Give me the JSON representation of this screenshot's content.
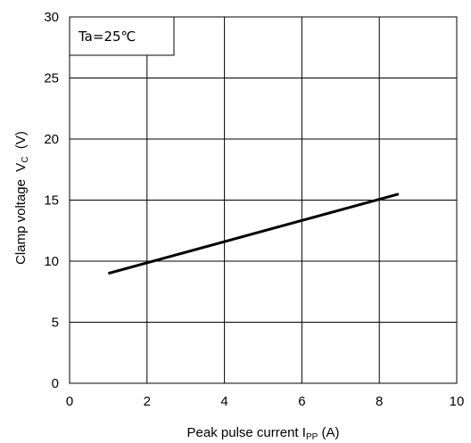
{
  "chart_data": {
    "type": "line",
    "xlabel": {
      "main": "Peak pulse current I",
      "sub": "PP",
      "unit": " (A)"
    },
    "ylabel": {
      "main": "Clamp voltage  V",
      "sub": "C",
      "unit": "  (V)"
    },
    "xlim": [
      0,
      10
    ],
    "ylim": [
      0,
      30
    ],
    "xticks": [
      0,
      2,
      4,
      6,
      8,
      10
    ],
    "yticks": [
      0,
      5,
      10,
      15,
      20,
      25,
      30
    ],
    "xtick_labels": [
      "0",
      "2",
      "4",
      "6",
      "8",
      "10"
    ],
    "ytick_labels": [
      "0",
      "5",
      "10",
      "15",
      "20",
      "25",
      "30"
    ],
    "grid": true,
    "annotation": "Ta=25℃",
    "series": [
      {
        "x": [
          1,
          8.5
        ],
        "y": [
          9,
          15.5
        ],
        "color": "#000000"
      }
    ]
  }
}
